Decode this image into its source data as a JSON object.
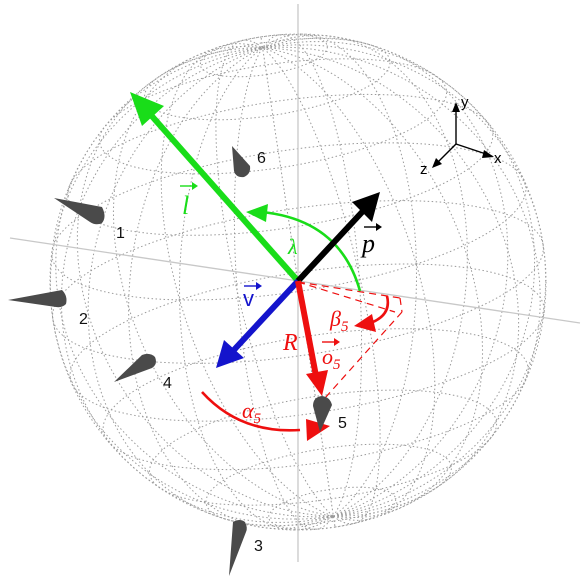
{
  "colors": {
    "sphere_grid": "#9a9a9a",
    "axes_gray": "#c8c8c8",
    "light": "#19dd19",
    "view": "#1414cc",
    "pointer": "#000000",
    "ray": "#ee0f0f",
    "microphone": "#4a4a4a",
    "label": "#111111"
  },
  "vectors": {
    "light_label": "l",
    "pointer_label": "p",
    "view_label": "v",
    "ray_label": "o",
    "ray_subscript": "5",
    "radius_label": "R"
  },
  "angles": {
    "lambda_label": "λ",
    "alpha_label": "α",
    "alpha_sub": "5",
    "beta_label": "β",
    "beta_sub": "5"
  },
  "microphones": [
    {
      "id": "1"
    },
    {
      "id": "2"
    },
    {
      "id": "3"
    },
    {
      "id": "4"
    },
    {
      "id": "5"
    },
    {
      "id": "6"
    }
  ],
  "axes_triad": {
    "x": "x",
    "y": "y",
    "z": "z"
  }
}
